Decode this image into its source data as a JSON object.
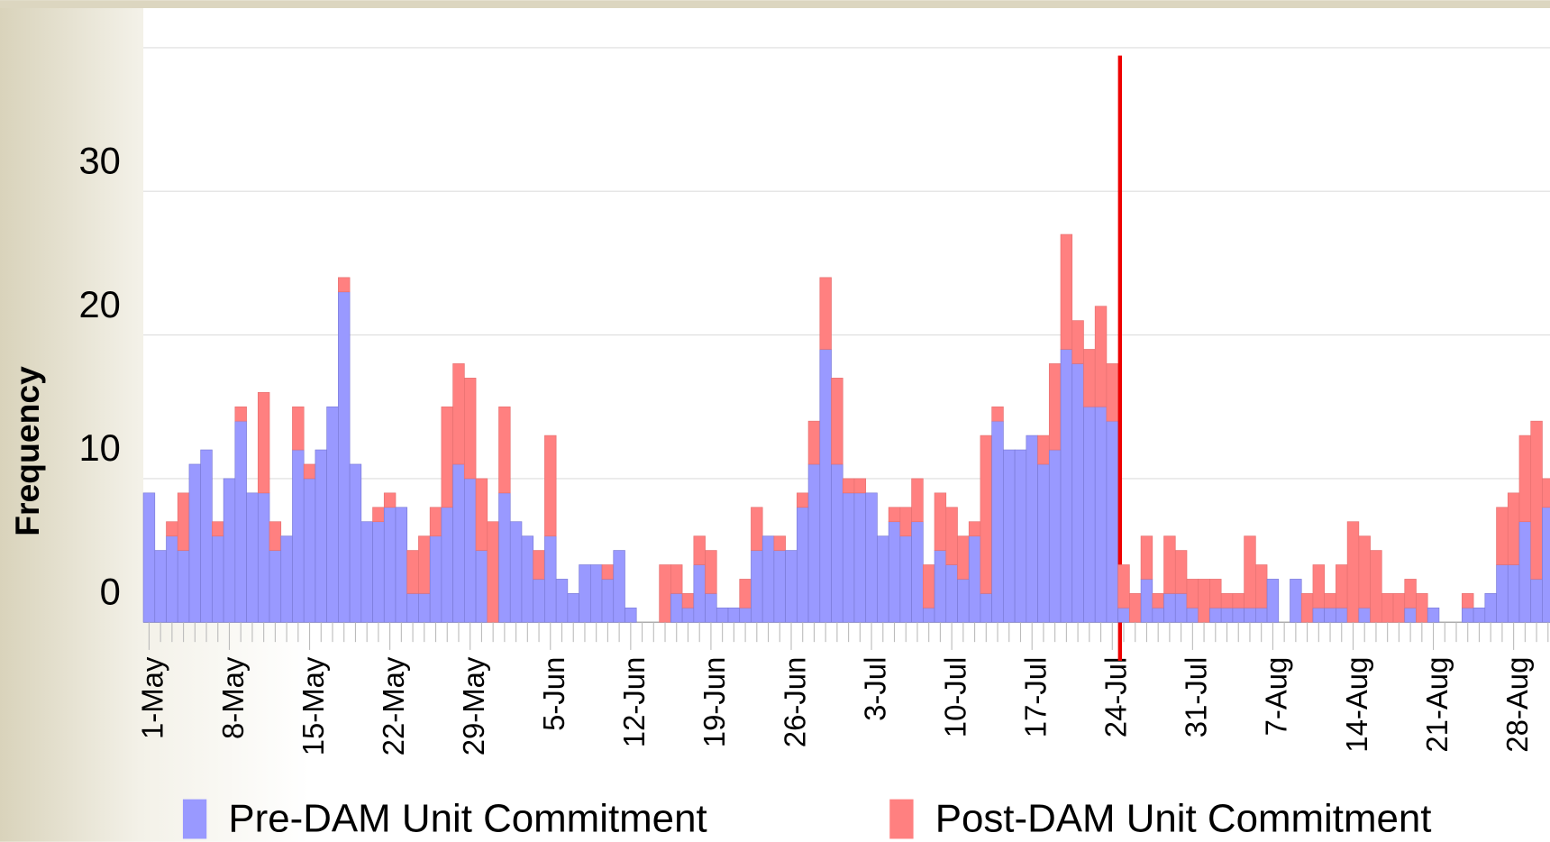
{
  "chart_data": {
    "type": "stacked_bar",
    "y_label": "Frequency",
    "categories": [
      "1-May",
      null,
      null,
      null,
      null,
      null,
      null,
      "8-May",
      null,
      null,
      null,
      null,
      null,
      null,
      "15-May",
      null,
      null,
      null,
      null,
      null,
      null,
      "22-May",
      null,
      null,
      null,
      null,
      null,
      null,
      "29-May",
      null,
      null,
      null,
      null,
      null,
      null,
      "5-Jun",
      null,
      null,
      null,
      null,
      null,
      null,
      "12-Jun",
      null,
      null,
      null,
      null,
      null,
      null,
      "19-Jun",
      null,
      null,
      null,
      null,
      null,
      null,
      "26-Jun",
      null,
      null,
      null,
      null,
      null,
      null,
      "3-Jul",
      null,
      null,
      null,
      null,
      null,
      null,
      "10-Jul",
      null,
      null,
      null,
      null,
      null,
      null,
      "17-Jul",
      null,
      null,
      null,
      null,
      null,
      null,
      "24-Jul",
      null,
      null,
      null,
      null,
      null,
      null,
      "31-Jul",
      null,
      null,
      null,
      null,
      null,
      null,
      "7-Aug",
      null,
      null,
      null,
      null,
      null,
      null,
      "14-Aug",
      null,
      null,
      null,
      null,
      null,
      null,
      "21-Aug",
      null,
      null,
      null,
      null,
      null,
      null,
      "28-Aug",
      null,
      null,
      null
    ],
    "series": [
      {
        "name": "Pre-DAM Unit Commitment",
        "color": "#9999ff",
        "values": [
          9,
          5,
          6,
          5,
          11,
          12,
          6,
          10,
          14,
          9,
          9,
          5,
          6,
          12,
          10,
          12,
          15,
          23,
          11,
          7,
          7,
          8,
          8,
          2,
          2,
          6,
          8,
          11,
          10,
          5,
          0,
          9,
          7,
          6,
          3,
          6,
          3,
          2,
          4,
          4,
          3,
          5,
          1,
          0,
          0,
          0,
          2,
          1,
          4,
          2,
          1,
          1,
          1,
          5,
          6,
          5,
          5,
          8,
          11,
          19,
          11,
          9,
          9,
          9,
          6,
          7,
          6,
          7,
          1,
          5,
          4,
          3,
          6,
          2,
          14,
          12,
          12,
          13,
          11,
          12,
          19,
          18,
          15,
          15,
          14,
          1,
          0,
          3,
          1,
          2,
          2,
          1,
          0,
          1,
          1,
          1,
          1,
          1,
          3,
          0,
          3,
          0,
          1,
          1,
          1,
          0,
          1,
          0,
          0,
          0,
          1,
          0,
          1,
          0,
          0,
          1,
          1,
          2,
          4,
          4,
          7,
          3,
          8
        ]
      },
      {
        "name": "Post-DAM Unit Commitment",
        "color": "#ff8080",
        "values": [
          0,
          0,
          1,
          4,
          0,
          0,
          1,
          0,
          1,
          0,
          7,
          2,
          0,
          3,
          1,
          0,
          0,
          1,
          0,
          0,
          1,
          1,
          0,
          3,
          4,
          2,
          7,
          7,
          7,
          5,
          7,
          6,
          0,
          0,
          2,
          7,
          0,
          0,
          0,
          0,
          1,
          0,
          0,
          0,
          0,
          4,
          2,
          1,
          2,
          3,
          0,
          0,
          2,
          3,
          0,
          1,
          0,
          1,
          3,
          5,
          6,
          1,
          1,
          0,
          0,
          1,
          2,
          3,
          3,
          4,
          4,
          3,
          1,
          11,
          1,
          0,
          0,
          0,
          2,
          6,
          8,
          3,
          4,
          7,
          4,
          3,
          2,
          3,
          1,
          4,
          3,
          2,
          3,
          2,
          1,
          1,
          5,
          3,
          0,
          0,
          0,
          2,
          3,
          1,
          3,
          7,
          5,
          5,
          2,
          2,
          2,
          2,
          0,
          0,
          0,
          1,
          0,
          0,
          4,
          5,
          6,
          11,
          2
        ]
      }
    ],
    "ylim": [
      0,
      40
    ],
    "yticks": [
      0,
      10,
      20,
      30
    ],
    "grid": true,
    "vline_category": "24-Jul",
    "vline_color": "#ee0000",
    "legend": "bottom"
  }
}
